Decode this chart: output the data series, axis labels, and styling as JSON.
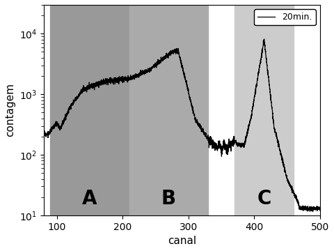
{
  "title": "",
  "xlabel": "canal",
  "ylabel": "contagem",
  "xlim": [
    80,
    500
  ],
  "ylim": [
    10,
    30000
  ],
  "legend_label": "20min.",
  "regions": [
    {
      "xmin": 90,
      "xmax": 210,
      "label": "A",
      "color": "#999999",
      "alpha": 1.0
    },
    {
      "xmin": 210,
      "xmax": 330,
      "label": "B",
      "color": "#AAAAAA",
      "alpha": 1.0
    },
    {
      "xmin": 370,
      "xmax": 460,
      "label": "C",
      "color": "#CCCCCC",
      "alpha": 1.0
    }
  ],
  "line_color": "#000000",
  "line_width": 0.9,
  "background_color": "#ffffff",
  "region_label_fontsize": 20,
  "tick_fontsize": 10,
  "axis_label_fontsize": 11
}
